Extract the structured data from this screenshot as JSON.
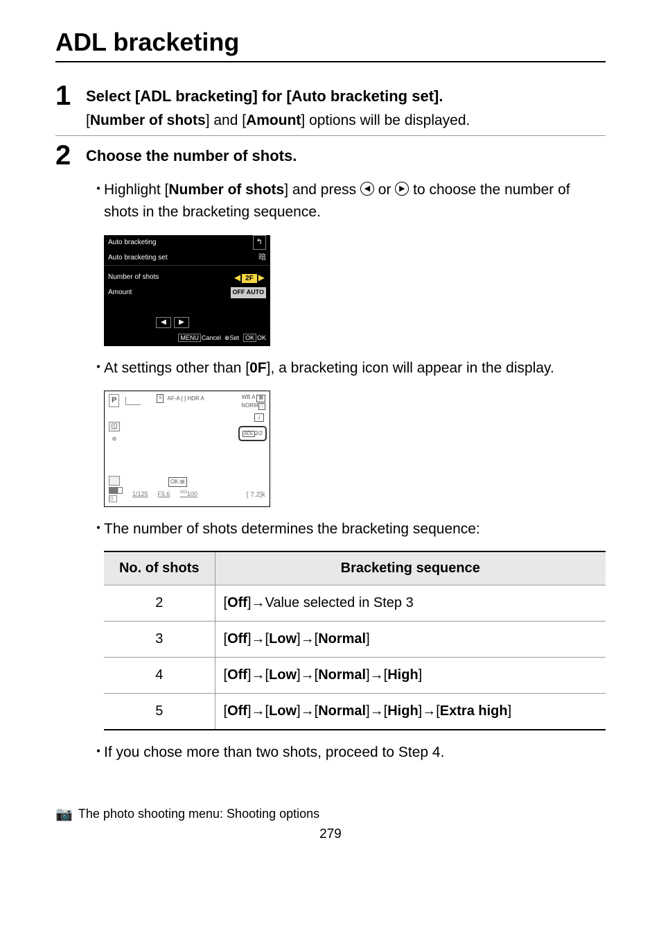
{
  "title": "ADL bracketing",
  "step1": {
    "num": "1",
    "title_pre": "Select [",
    "title_strong1": "ADL bracketing",
    "title_mid": "] for [",
    "title_strong2": "Auto bracketing set",
    "title_post": "].",
    "desc_pre": "[",
    "desc_s1": "Number of shots",
    "desc_mid": "] and [",
    "desc_s2": "Amount",
    "desc_post": "] options will be displayed."
  },
  "step2": {
    "num": "2",
    "title": "Choose the number of shots.",
    "b1_pre": "Highlight [",
    "b1_strong": "Number of shots",
    "b1_mid": "] and press ",
    "b1_or": " or ",
    "b1_post": " to choose the number of shots in the bracketing sequence.",
    "b2_pre": "At settings other than [",
    "b2_strong": "0F",
    "b2_post": "], a bracketing icon will appear in the display.",
    "b3": "The number of shots determines the bracketing sequence:",
    "b4": "If you chose more than two shots, proceed to Step 4."
  },
  "menu1": {
    "header": "Auto bracketing",
    "sub": "Auto bracketing set",
    "row1": "Number of shots",
    "row1val": "2F",
    "row2": "Amount",
    "row2val": "OFF AUTO",
    "cancel": "Cancel",
    "set": "Set",
    "ok": "OK"
  },
  "display2": {
    "p": "P",
    "topicons": "AF-A  [ ]  HDR  A",
    "wb": "WB A",
    "norm": "NORM",
    "bkt": "ADL-BKT 2/2",
    "ok": "OK",
    "iso_label": "ISO",
    "shutter": "1/125",
    "aperture": "F5.6",
    "iso": "100",
    "remaining": "[ 7.2]k"
  },
  "table": {
    "h1": "No. of shots",
    "h2": "Bracketing sequence",
    "rows": [
      {
        "n": "2",
        "pre": "[",
        "p1": "Off",
        "mid": "]→Value selected in Step 3"
      },
      {
        "n": "3",
        "seq": [
          "Off",
          "Low",
          "Normal"
        ]
      },
      {
        "n": "4",
        "seq": [
          "Off",
          "Low",
          "Normal",
          "High"
        ]
      },
      {
        "n": "5",
        "seq": [
          "Off",
          "Low",
          "Normal",
          "High",
          "Extra high"
        ]
      }
    ]
  },
  "footer": "The photo shooting menu: Shooting options",
  "page": "279"
}
